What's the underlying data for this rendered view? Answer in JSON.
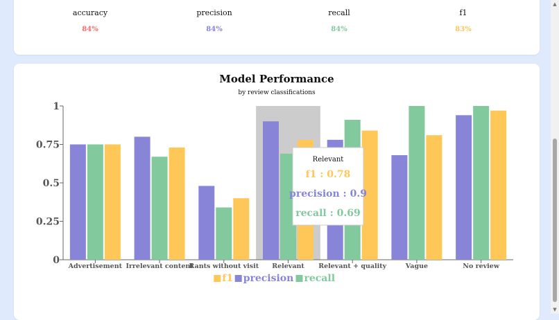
{
  "metrics": [
    {
      "label": "accuracy",
      "value": "84%",
      "color": "#ff6b6b"
    },
    {
      "label": "precision",
      "value": "84%",
      "color": "#8884d8"
    },
    {
      "label": "recall",
      "value": "84%",
      "color": "#82ca9d"
    },
    {
      "label": "f1",
      "value": "83%",
      "color": "#ffc658"
    }
  ],
  "chart_data": {
    "type": "bar",
    "title": "Model Performance",
    "subtitle": "by review classifications",
    "categories": [
      "Advertisement",
      "Irrelevant content",
      "Rants without visit",
      "Relevant",
      "Relevant + quality",
      "Vague",
      "No review"
    ],
    "ylim": [
      0,
      1
    ],
    "yticks": [
      "0",
      "0.25",
      "0.5",
      "0.75",
      "1"
    ],
    "series": [
      {
        "name": "precision",
        "color": "#8884d8",
        "values": [
          0.75,
          0.8,
          0.48,
          0.9,
          0.78,
          0.68,
          0.94
        ]
      },
      {
        "name": "recall",
        "color": "#82ca9d",
        "values": [
          0.75,
          0.67,
          0.34,
          0.69,
          0.91,
          1.0,
          1.0
        ]
      },
      {
        "name": "f1",
        "color": "#ffc658",
        "values": [
          0.75,
          0.73,
          0.4,
          0.78,
          0.84,
          0.81,
          0.97
        ]
      }
    ],
    "legend": {
      "placement": "bottom-center",
      "order": [
        "f1",
        "precision",
        "recall"
      ]
    },
    "tooltip": {
      "category": "Relevant",
      "lines": [
        {
          "text": "f1 : 0.78",
          "color": "#ffc658"
        },
        {
          "text": "precision : 0.9",
          "color": "#8884d8"
        },
        {
          "text": "recall : 0.69",
          "color": "#82ca9d"
        }
      ]
    },
    "highlight_category": "Relevant"
  }
}
